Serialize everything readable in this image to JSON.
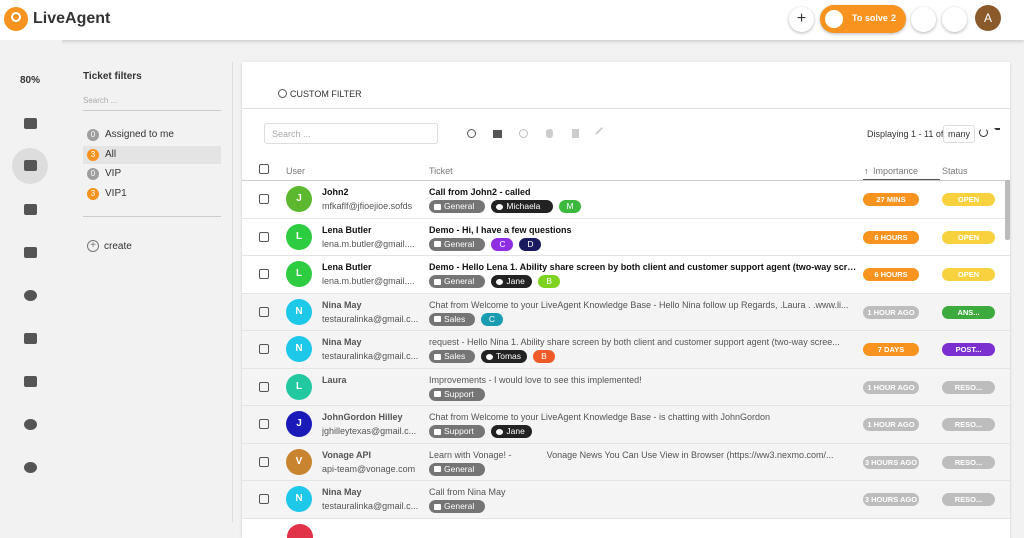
{
  "header": {
    "brand": "LiveAgent",
    "to_solve": "To solve",
    "to_solve_count": 2,
    "avatar": "A"
  },
  "sidebar": {
    "zoom": "80%"
  },
  "filters": {
    "title": "Ticket filters",
    "search_placeholder": "Search ...",
    "items": [
      {
        "count": 0,
        "label": "Assigned to me",
        "color": "#9e9e9e"
      },
      {
        "count": 3,
        "label": "All",
        "color": "#f7931e"
      },
      {
        "count": 0,
        "label": "VIP",
        "color": "#9e9e9e"
      },
      {
        "count": 3,
        "label": "VIP1",
        "color": "#f7931e"
      }
    ],
    "create": "create"
  },
  "main": {
    "custom_filter": "CUSTOM FILTER",
    "search_placeholder": "Search ...",
    "displaying": "Displaying 1 - 11 of",
    "many": "many",
    "columns": [
      "User",
      "Ticket",
      "Importance",
      "Status"
    ],
    "rows": [
      {
        "avatar": "J",
        "avatar_color": "#5cb82e",
        "name": "John2",
        "email": "mfkaflf@jfioejioe.sofds",
        "subject": "Call from John2 - called",
        "unread": true,
        "tags": [
          {
            "text": "General",
            "color": "#757575"
          },
          {
            "text": "Michaela",
            "color": "#222222"
          },
          {
            "text": "M",
            "color": "#3cb83c"
          }
        ],
        "importance": "27 MINS",
        "importance_color": "#f7931e",
        "status": "OPEN",
        "status_color": "#f7d23e"
      },
      {
        "avatar": "L",
        "avatar_color": "#2ecc40",
        "name": "Lena Butler",
        "email": "lena.m.butler@gmail....",
        "subject": "Demo - Hi, I have a few questions",
        "unread": true,
        "tags": [
          {
            "text": "General",
            "color": "#757575"
          },
          {
            "text": "C",
            "color": "#8e2de2"
          },
          {
            "text": "D",
            "color": "#1a1a5e"
          }
        ],
        "importance": "6 HOURS",
        "importance_color": "#f7931e",
        "status": "OPEN",
        "status_color": "#f7d23e"
      },
      {
        "avatar": "L",
        "avatar_color": "#2ecc40",
        "name": "Lena Butler",
        "email": "lena.m.butler@gmail....",
        "subject": "Demo - Hello Lena 1. Ability share screen by both client and customer support agent (two-way scree...",
        "unread": true,
        "tags": [
          {
            "text": "General",
            "color": "#757575"
          },
          {
            "text": "Jane",
            "color": "#222222"
          },
          {
            "text": "B",
            "color": "#7ed321"
          }
        ],
        "importance": "6 HOURS",
        "importance_color": "#f7931e",
        "status": "OPEN",
        "status_color": "#f7d23e"
      },
      {
        "avatar": "N",
        "avatar_color": "#1ec8e8",
        "name": "Nina May",
        "email": "testauralinka@gmail.c...",
        "subject": "Chat from Welcome to your LiveAgent Knowledge Base - Hello Nina follow up Regards, .Laura . .www.li...",
        "unread": false,
        "tags": [
          {
            "text": "Sales",
            "color": "#757575"
          },
          {
            "text": "C",
            "color": "#1a9bb0"
          }
        ],
        "importance": "1 HOUR AGO",
        "importance_color": "#bdbdbd",
        "status": "ANS...",
        "status_color": "#3daa3d"
      },
      {
        "avatar": "N",
        "avatar_color": "#1ec8e8",
        "name": "Nina May",
        "email": "testauralinka@gmail.c...",
        "subject": "request - Hello Nina 1. Ability share screen by both client and customer support agent (two-way scree...",
        "unread": false,
        "tags": [
          {
            "text": "Sales",
            "color": "#757575"
          },
          {
            "text": "Tomas",
            "color": "#222222"
          },
          {
            "text": "B",
            "color": "#f05a28"
          }
        ],
        "importance": "7 DAYS",
        "importance_color": "#f7931e",
        "status": "POST...",
        "status_color": "#7b2fd0"
      },
      {
        "avatar": "L",
        "avatar_color": "#22c9a0",
        "name": "Laura",
        "subject": "Improvements - I would love to see this implemented!",
        "unread": false,
        "tags": [
          {
            "text": "Support",
            "color": "#757575"
          }
        ],
        "importance": "1 HOUR AGO",
        "importance_color": "#bdbdbd",
        "status": "RESO...",
        "status_color": "#bdbdbd"
      },
      {
        "avatar": "J",
        "avatar_color": "#1a1ab8",
        "name": "JohnGordon Hilley",
        "email": "jghilleytexas@gmail.c...",
        "subject": "Chat from Welcome to your LiveAgent Knowledge Base - is chatting with JohnGordon",
        "unread": false,
        "tags": [
          {
            "text": "Support",
            "color": "#757575"
          },
          {
            "text": "Jane",
            "color": "#222222"
          }
        ],
        "importance": "1 HOUR AGO",
        "importance_color": "#bdbdbd",
        "status": "RESO...",
        "status_color": "#bdbdbd"
      },
      {
        "avatar": "V",
        "avatar_color": "#c8842e",
        "name": "Vonage API",
        "email": "api-team@vonage.com",
        "subject": "Learn with Vonage! -              Vonage News You Can Use View in Browser (https://ww3.nexmo.com/...",
        "unread": false,
        "tags": [
          {
            "text": "General",
            "color": "#757575"
          }
        ],
        "importance": "3 HOURS AGO",
        "importance_color": "#bdbdbd",
        "status": "RESO...",
        "status_color": "#bdbdbd"
      },
      {
        "avatar": "N",
        "avatar_color": "#1ec8e8",
        "name": "Nina May",
        "email": "testauralinka@gmail.c...",
        "subject": "Call from Nina May",
        "unread": false,
        "tags": [
          {
            "text": "General",
            "color": "#757575"
          }
        ],
        "importance": "3 HOURS AGO",
        "importance_color": "#bdbdbd",
        "status": "RESO...",
        "status_color": "#bdbdbd"
      }
    ]
  }
}
